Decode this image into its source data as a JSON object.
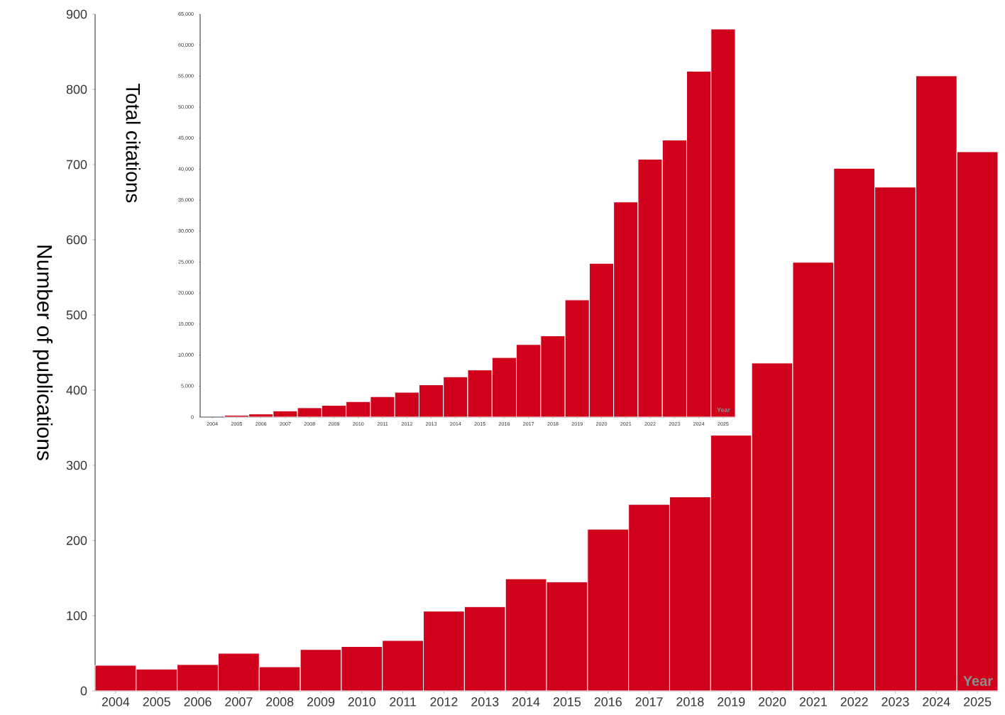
{
  "chart_data": [
    {
      "type": "bar",
      "xlabel": "Year",
      "ylabel": "Number of publications",
      "categories": [
        "2004",
        "2005",
        "2006",
        "2007",
        "2008",
        "2009",
        "2010",
        "2011",
        "2012",
        "2013",
        "2014",
        "2015",
        "2016",
        "2017",
        "2018",
        "2019",
        "2020",
        "2021",
        "2022",
        "2023",
        "2024",
        "2025"
      ],
      "values": [
        34,
        29,
        35,
        50,
        32,
        55,
        59,
        67,
        106,
        112,
        149,
        145,
        215,
        248,
        258,
        340,
        436,
        570,
        695,
        670,
        818,
        717
      ],
      "color": "#d0021b",
      "ylim": [
        0,
        900
      ],
      "yticks": [
        0,
        100,
        200,
        300,
        400,
        500,
        600,
        700,
        800,
        900
      ]
    },
    {
      "type": "bar",
      "xlabel": "Year",
      "ylabel": "Total citations",
      "categories": [
        "2004",
        "2005",
        "2006",
        "2007",
        "2008",
        "2009",
        "2010",
        "2011",
        "2012",
        "2013",
        "2014",
        "2015",
        "2016",
        "2017",
        "2018",
        "2019",
        "2020",
        "2021",
        "2022",
        "2023",
        "2024",
        "2025"
      ],
      "values": [
        null,
        300,
        500,
        1000,
        1500,
        1900,
        2500,
        3300,
        4000,
        5200,
        6500,
        7600,
        9600,
        11700,
        13100,
        18900,
        24800,
        34700,
        41600,
        44700,
        55800,
        62600
      ],
      "color": "#d0021b",
      "ylim": [
        0,
        65000
      ],
      "yticks": [
        0,
        {
          "value": 5000,
          "label": "5,000"
        },
        {
          "value": 10000,
          "label": "10,000"
        },
        {
          "value": 15000,
          "label": "15,000"
        },
        {
          "value": 20000,
          "label": "20,000"
        },
        {
          "value": 25000,
          "label": "25,000"
        },
        {
          "value": 30000,
          "label": "30,000"
        },
        {
          "value": 35000,
          "label": "35,000"
        },
        {
          "value": 40000,
          "label": "40,000"
        },
        {
          "value": 45000,
          "label": "45,000"
        },
        {
          "value": 50000,
          "label": "50,000"
        },
        {
          "value": 55000,
          "label": "55,000"
        },
        {
          "value": 60000,
          "label": "60,000"
        },
        {
          "value": 65000,
          "label": "65,000"
        }
      ]
    }
  ]
}
